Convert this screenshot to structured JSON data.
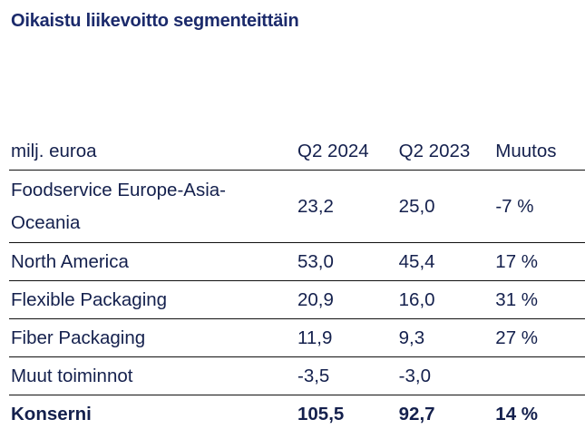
{
  "title": "Oikaistu liikevoitto segmenteittäin",
  "table": {
    "headers": [
      "milj. euroa",
      "Q2 2024",
      "Q2 2023",
      "Muutos"
    ],
    "rows": [
      [
        "Foodservice Europe-Asia-Oceania",
        "23,2",
        "25,0",
        "-7 %"
      ],
      [
        "North America",
        "53,0",
        "45,4",
        "17 %"
      ],
      [
        "Flexible Packaging",
        "20,9",
        "16,0",
        "31 %"
      ],
      [
        "Fiber Packaging",
        "11,9",
        "9,3",
        "27 %"
      ],
      [
        "Muut toiminnot",
        "-3,5",
        "-3,0",
        ""
      ],
      [
        "Konserni",
        "105,5",
        "92,7",
        "14 %"
      ]
    ]
  }
}
